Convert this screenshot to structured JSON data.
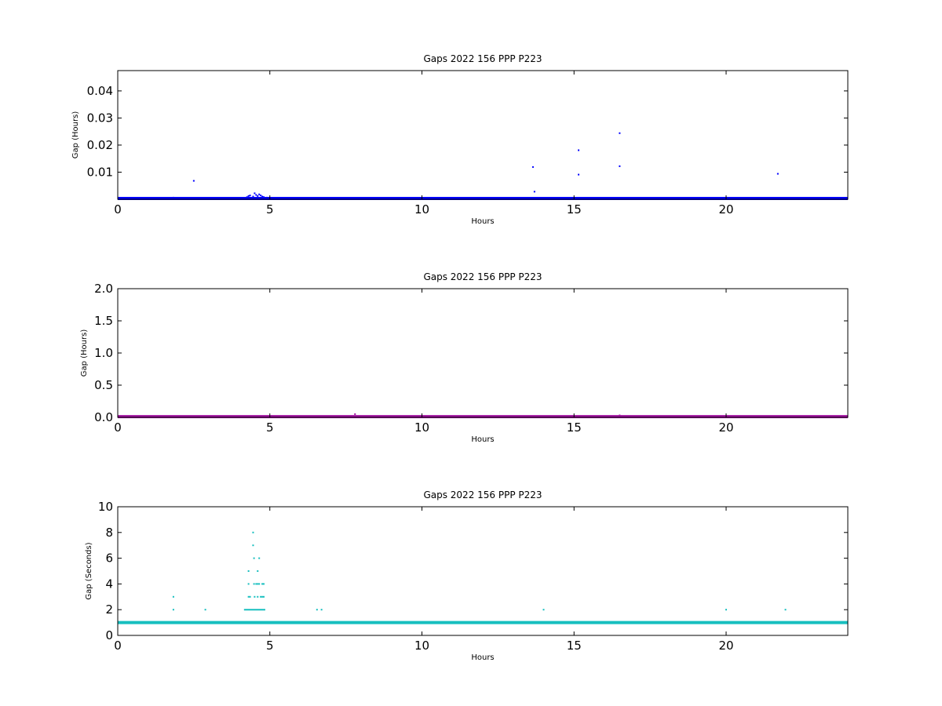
{
  "chart_data": [
    {
      "type": "scatter",
      "title": "Gaps 2022 156 PPP  P223",
      "xlabel": "Hours",
      "ylabel": "Gap (Hours)",
      "xlim": [
        0,
        24
      ],
      "ylim": [
        0,
        0.0475
      ],
      "xticks": [
        "0",
        "5",
        "10",
        "15",
        "20"
      ],
      "xtick_values": [
        0,
        5,
        10,
        15,
        20
      ],
      "yticks": [
        "0.01",
        "0.02",
        "0.03",
        "0.04"
      ],
      "ytick_values": [
        0.01,
        0.02,
        0.03,
        0.04
      ],
      "color": "#0000ff",
      "baseline": {
        "x_start": 0,
        "x_end": 24,
        "y": 0.000278
      },
      "points": [
        [
          1.83,
          0.0006
        ],
        [
          2.5,
          0.0068
        ],
        [
          4.25,
          0.0008
        ],
        [
          4.3,
          0.0012
        ],
        [
          4.35,
          0.0014
        ],
        [
          4.45,
          0.001
        ],
        [
          4.5,
          0.0022
        ],
        [
          4.55,
          0.0016
        ],
        [
          4.6,
          0.0012
        ],
        [
          4.65,
          0.0018
        ],
        [
          4.7,
          0.0014
        ],
        [
          4.75,
          0.001
        ],
        [
          4.8,
          0.0008
        ],
        [
          4.9,
          0.0006
        ],
        [
          13.65,
          0.0119
        ],
        [
          13.7,
          0.0028
        ],
        [
          15.15,
          0.0181
        ],
        [
          15.15,
          0.0091
        ],
        [
          16.5,
          0.0244
        ],
        [
          16.5,
          0.0122
        ],
        [
          21.7,
          0.0094
        ]
      ]
    },
    {
      "type": "scatter",
      "title": "Gaps 2022 156 PPP  P223",
      "xlabel": "Hours",
      "ylabel": "Gap (Hours)",
      "xlim": [
        0,
        24
      ],
      "ylim": [
        0,
        2.0
      ],
      "xticks": [
        "0",
        "5",
        "10",
        "15",
        "20"
      ],
      "xtick_values": [
        0,
        5,
        10,
        15,
        20
      ],
      "yticks": [
        "0.0",
        "0.5",
        "1.0",
        "1.5",
        "2.0"
      ],
      "ytick_values": [
        0,
        0.5,
        1.0,
        1.5,
        2.0
      ],
      "color": "#a0109f",
      "baseline": {
        "x_start": 0,
        "x_end": 24,
        "y": 0.01
      },
      "points": [
        [
          7.8,
          0.05
        ],
        [
          16.5,
          0.03
        ]
      ]
    },
    {
      "type": "scatter",
      "title": "Gaps 2022 156 PPP  P223",
      "xlabel": "Hours",
      "ylabel": "Gap (Seconds)",
      "xlim": [
        0,
        24
      ],
      "ylim": [
        0,
        10
      ],
      "xticks": [
        "0",
        "5",
        "10",
        "15",
        "20"
      ],
      "xtick_values": [
        0,
        5,
        10,
        15,
        20
      ],
      "yticks": [
        "0",
        "2",
        "4",
        "6",
        "8",
        "10"
      ],
      "ytick_values": [
        0,
        2,
        4,
        6,
        8,
        10
      ],
      "color": "#17bfbf",
      "baseline": {
        "x_start": 0,
        "x_end": 24,
        "y": 1
      },
      "segments": [
        {
          "x_start": 4.15,
          "x_end": 4.85,
          "y": 2
        }
      ],
      "points": [
        [
          1.83,
          3
        ],
        [
          1.83,
          2
        ],
        [
          2.88,
          2
        ],
        [
          4.3,
          5
        ],
        [
          4.3,
          4
        ],
        [
          4.3,
          3
        ],
        [
          4.35,
          3
        ],
        [
          4.45,
          8
        ],
        [
          4.45,
          7
        ],
        [
          4.48,
          6
        ],
        [
          4.48,
          4
        ],
        [
          4.5,
          3
        ],
        [
          4.55,
          4
        ],
        [
          4.6,
          5
        ],
        [
          4.6,
          4
        ],
        [
          4.6,
          3
        ],
        [
          4.65,
          6
        ],
        [
          4.65,
          4
        ],
        [
          4.7,
          3
        ],
        [
          4.75,
          4
        ],
        [
          4.75,
          3
        ],
        [
          4.8,
          4
        ],
        [
          4.8,
          3
        ],
        [
          6.55,
          2
        ],
        [
          6.7,
          2
        ],
        [
          14.0,
          2
        ],
        [
          20.0,
          2
        ],
        [
          21.95,
          2
        ]
      ]
    }
  ]
}
